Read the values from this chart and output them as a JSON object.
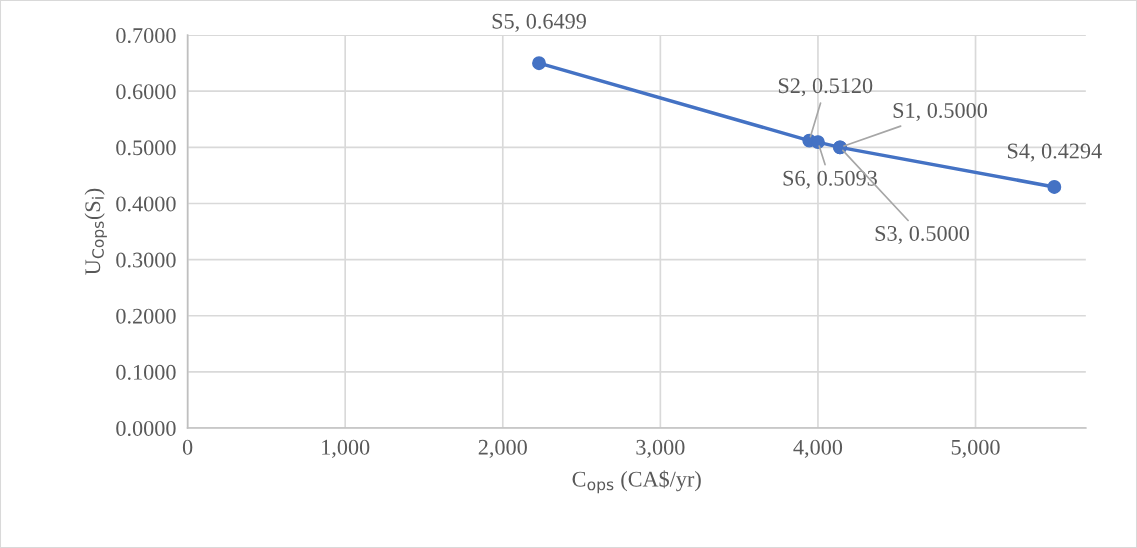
{
  "chart_data": {
    "type": "line",
    "xlabel": "C$_{ops}$ (CA$/yr)",
    "ylabel": "U$_{Cops}$(S$_{i}$)",
    "x": [
      2230,
      3945,
      4000,
      4140,
      4140,
      5500
    ],
    "series": [
      {
        "color": "#4472c4",
        "values": [
          0.6499,
          0.512,
          0.5093,
          0.5,
          0.5,
          0.4294
        ],
        "value_labels": [
          "S5, 0.6499",
          "S2, 0.5120",
          "S6, 0.5093",
          "S1, 0.5000",
          "S3, 0.5000",
          "S4, 0.4294"
        ]
      }
    ],
    "xlim": [
      0,
      5700
    ],
    "xticks": [
      0,
      {
        "value": 1000,
        "label": "1,000"
      },
      {
        "value": 2000,
        "label": "2,000"
      },
      {
        "value": 3000,
        "label": "3,000"
      },
      {
        "value": 4000,
        "label": "4,000"
      },
      {
        "value": 5000,
        "label": "5,000"
      }
    ],
    "ylim": [
      0,
      0.7
    ],
    "yticks": [
      {
        "value": 0,
        "label": "0.0000"
      },
      {
        "value": 0.1,
        "label": "0.1000"
      },
      {
        "value": 0.2,
        "label": "0.2000"
      },
      {
        "value": 0.3,
        "label": "0.3000"
      },
      {
        "value": 0.4,
        "label": "0.4000"
      },
      {
        "value": 0.5,
        "label": "0.5000"
      },
      {
        "value": 0.6,
        "label": "0.6000"
      },
      {
        "value": 0.7,
        "label": "0.7000"
      }
    ],
    "grid": true,
    "marker": "circle",
    "line_style": "solid",
    "legend": false
  }
}
